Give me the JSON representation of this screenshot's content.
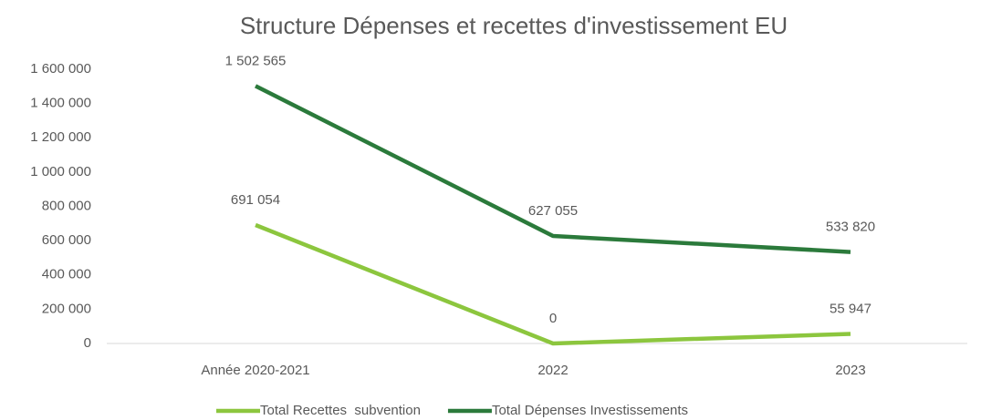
{
  "chart_data": {
    "type": "line",
    "title": "Structure Dépenses et recettes d'investissement EU",
    "categories": [
      "Année 2020-2021",
      "2022",
      "2023"
    ],
    "series": [
      {
        "name": "Total Recettes  subvention",
        "color": "#8cc63e",
        "values": [
          691054,
          0,
          55947
        ],
        "value_labels": [
          "691 054",
          "0",
          "55 947"
        ]
      },
      {
        "name": "Total Dépenses Investissements",
        "color": "#2b7a3b",
        "values": [
          1502565,
          627055,
          533820
        ],
        "value_labels": [
          "1 502 565",
          "627 055",
          "533 820"
        ]
      }
    ],
    "ylim": [
      0,
      1600000
    ],
    "yticks": [
      0,
      {
        "value": 200000,
        "label": "200 000"
      },
      {
        "value": 400000,
        "label": "400 000"
      },
      {
        "value": 600000,
        "label": "600 000"
      },
      {
        "value": 800000,
        "label": "800 000"
      },
      {
        "value": 1000000,
        "label": "1 000 000"
      },
      {
        "value": 1200000,
        "label": "1 200 000"
      },
      {
        "value": 1400000,
        "label": "1 400 000"
      },
      {
        "value": 1600000,
        "label": "1 600 000"
      }
    ],
    "grid": false,
    "legend": "bottom"
  }
}
